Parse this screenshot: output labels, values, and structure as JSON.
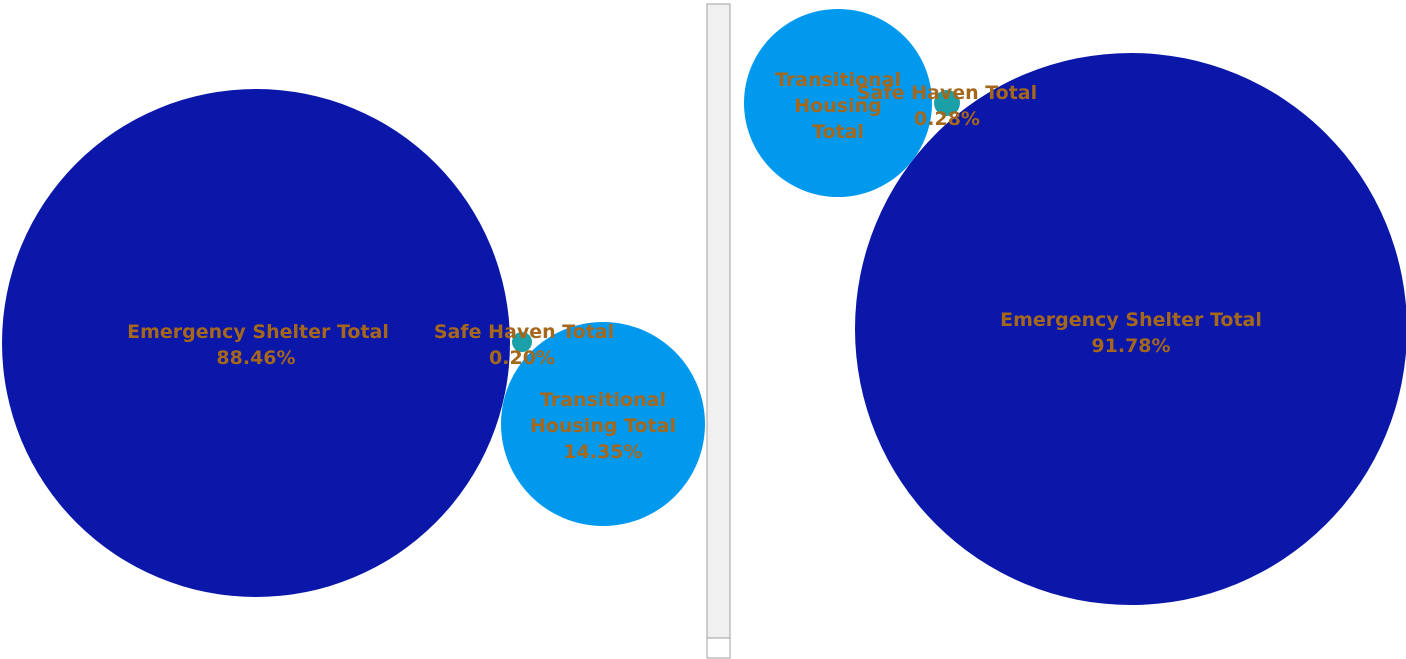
{
  "colors": {
    "emergency": "#0a17a8",
    "transitional": "#0099ee",
    "safe_haven": "#1aa0a6",
    "label": "#a5671b",
    "divider_fill": "#f0f0f0",
    "divider_stroke": "#a0a0a0"
  },
  "chart_data": [
    {
      "type": "bubble",
      "items": [
        {
          "name": "Emergency Shelter Total",
          "percent": "88.46%",
          "value": 88.46
        },
        {
          "name": "Safe Haven Total",
          "percent": "0.20%",
          "value": 0.2
        },
        {
          "name": "Transitional Housing Total",
          "percent": "14.35%",
          "value": 14.35
        }
      ]
    },
    {
      "type": "bubble",
      "items": [
        {
          "name": "Transitional Housing Total",
          "percent": "",
          "value": null
        },
        {
          "name": "Safe Haven Total",
          "percent": "0.28%",
          "value": 0.28
        },
        {
          "name": "Emergency Shelter Total",
          "percent": "91.78%",
          "value": 91.78
        }
      ]
    }
  ]
}
